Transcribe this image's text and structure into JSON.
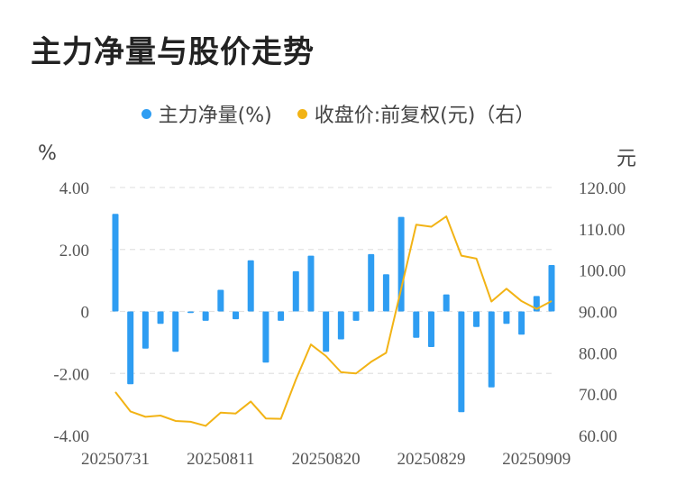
{
  "title": "主力净量与股价走势",
  "legend": {
    "bar_label": "主力净量(%)",
    "line_label": "收盘价:前复权(元)（右）"
  },
  "colors": {
    "bar": "#2e9df2",
    "line": "#f2b315",
    "grid": "#e3e3e3"
  },
  "chart_data": {
    "type": "bar+line",
    "left_axis": {
      "unit": "%",
      "ticks": [
        "4.00",
        "2.00",
        "0",
        "-2.00",
        "-4.00"
      ],
      "ylim": [
        -4,
        4
      ]
    },
    "right_axis": {
      "unit": "元",
      "ticks": [
        "120.00",
        "110.00",
        "100.00",
        "90.00",
        "80.00",
        "70.00",
        "60.00"
      ],
      "ylim": [
        60,
        120
      ]
    },
    "x_tick_labels": [
      "20250731",
      "20250811",
      "20250820",
      "20250829",
      "20250909"
    ],
    "x_tick_indices": [
      0,
      7,
      14,
      21,
      28
    ],
    "series": [
      {
        "name": "主力净量(%)",
        "kind": "bar",
        "axis": "left",
        "values": [
          3.15,
          -2.35,
          -1.2,
          -0.4,
          -1.3,
          -0.05,
          -0.3,
          0.7,
          -0.25,
          1.65,
          -1.65,
          -0.3,
          1.3,
          1.8,
          -1.3,
          -0.9,
          -0.3,
          1.85,
          1.2,
          3.05,
          -0.85,
          -1.15,
          0.55,
          -3.25,
          -0.5,
          -2.45,
          -0.4,
          -0.75,
          0.5,
          1.5
        ]
      },
      {
        "name": "收盘价:前复权(元)（右）",
        "kind": "line",
        "axis": "right",
        "values": [
          70.5,
          65.8,
          64.5,
          64.8,
          63.5,
          63.3,
          62.3,
          65.5,
          65.3,
          68.2,
          64.1,
          64.0,
          73.5,
          82.0,
          79.2,
          75.3,
          75.0,
          77.8,
          80.0,
          95.5,
          111.0,
          110.5,
          113.0,
          103.5,
          102.8,
          92.4,
          95.5,
          92.5,
          90.6,
          92.5
        ]
      }
    ]
  }
}
